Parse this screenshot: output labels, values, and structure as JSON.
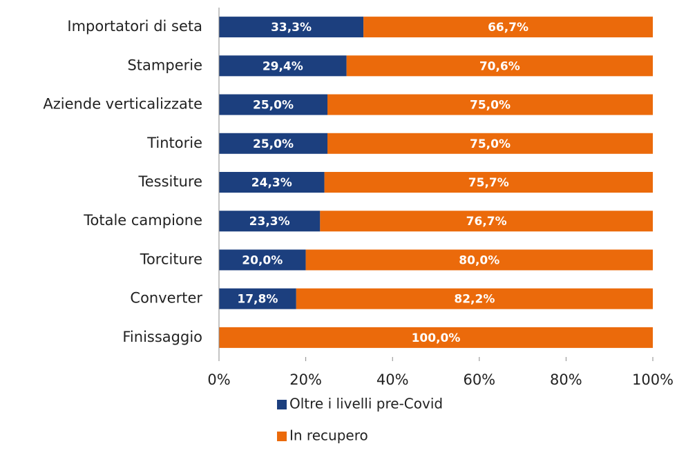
{
  "chart_data": {
    "type": "stacked_bar_horizontal",
    "categories": [
      "Importatori di seta",
      "Stamperie",
      "Aziende verticalizzate",
      "Tintorie",
      "Tessiture",
      "Totale campione",
      "Torciture",
      "Converter",
      "Finissaggio"
    ],
    "series": [
      {
        "name": "Oltre i livelli pre-Covid",
        "color": "#1c3f7e",
        "values": [
          33.3,
          29.4,
          25.0,
          25.0,
          24.3,
          23.3,
          20.0,
          17.8,
          0
        ],
        "value_labels": [
          "33,3%",
          "29,4%",
          "25,0%",
          "25,0%",
          "24,3%",
          "23,3%",
          "20,0%",
          "17,8%",
          null
        ]
      },
      {
        "name": "In recupero",
        "color": "#eb6a0b",
        "values": [
          66.7,
          70.6,
          75.0,
          75.0,
          75.7,
          76.7,
          80.0,
          82.2,
          100.0
        ],
        "value_labels": [
          "66,7%",
          "70,6%",
          "75,0%",
          "75,0%",
          "75,7%",
          "76,7%",
          "80,0%",
          "82,2%",
          "100,0%"
        ]
      }
    ],
    "xlim": [
      0,
      100
    ],
    "xticks": [
      {
        "value": 0,
        "label": "0%"
      },
      {
        "value": 20,
        "label": "20%"
      },
      {
        "value": 40,
        "label": "40%"
      },
      {
        "value": 60,
        "label": "60%"
      },
      {
        "value": 80,
        "label": "80%"
      },
      {
        "value": 100,
        "label": "100%"
      }
    ],
    "legend": "bottom"
  }
}
